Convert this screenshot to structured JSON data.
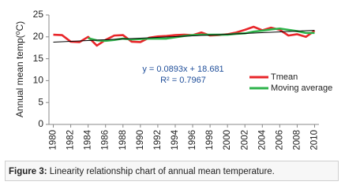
{
  "chart_data": {
    "type": "line",
    "y_label": "Annual mean temp(⁰C)",
    "x": [
      1980,
      1981,
      1982,
      1983,
      1984,
      1985,
      1986,
      1987,
      1988,
      1989,
      1990,
      1991,
      1992,
      1993,
      1994,
      1995,
      1996,
      1997,
      1998,
      1999,
      2000,
      2001,
      2002,
      2003,
      2004,
      2005,
      2006,
      2007,
      2008,
      2009,
      2010
    ],
    "xlim": [
      1979.5,
      2010.5
    ],
    "xticks": [
      1980,
      1982,
      1984,
      1986,
      1988,
      1990,
      1992,
      1994,
      1996,
      1998,
      2000,
      2002,
      2004,
      2006,
      2008,
      2010
    ],
    "ylim": [
      0,
      25
    ],
    "yticks": [
      0,
      5,
      10,
      15,
      20,
      25
    ],
    "series": [
      {
        "name": "Tmean",
        "color": "#e8262a",
        "values": [
          20.5,
          20.4,
          18.9,
          18.8,
          20.0,
          18.0,
          19.3,
          20.3,
          20.4,
          18.9,
          18.8,
          19.8,
          20.1,
          20.2,
          20.4,
          20.5,
          20.4,
          21.0,
          20.3,
          20.4,
          20.6,
          21.0,
          21.6,
          22.3,
          21.5,
          22.1,
          21.6,
          20.3,
          20.6,
          20.0,
          21.4
        ]
      },
      {
        "name": "Moving average",
        "color": "#2db34a",
        "values": [
          null,
          null,
          null,
          null,
          19.7,
          19.2,
          19.1,
          19.3,
          19.6,
          19.4,
          19.5,
          19.6,
          19.6,
          19.6,
          19.9,
          20.2,
          20.4,
          20.5,
          20.5,
          20.5,
          20.5,
          20.7,
          20.8,
          21.2,
          21.4,
          21.7,
          21.9,
          21.6,
          21.3,
          20.9,
          20.9
        ]
      }
    ],
    "trendline": {
      "x": [
        1980,
        2010
      ],
      "values": [
        18.8,
        21.5
      ],
      "color": "#000000"
    },
    "annotations": [
      "y = 0.0893x + 18.681",
      "R² = 0.7967"
    ]
  },
  "figure": {
    "label": "Figure 3:",
    "text": "Linearity relationship chart of annual mean temperature."
  }
}
